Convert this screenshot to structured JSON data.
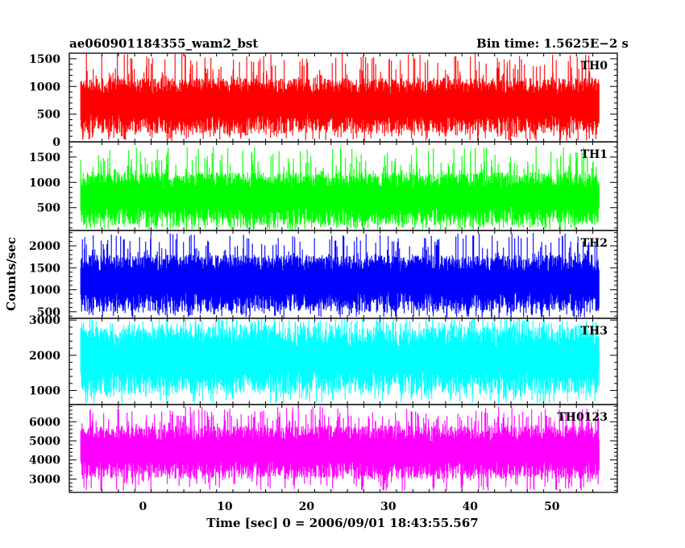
{
  "chart_data": {
    "type": "line",
    "title_left": "ae060901184355_wam2_bst",
    "title_right": "Bin time: 1.5625E−2 s",
    "xlabel": "Time [sec] 0 = 2006/09/01 18:43:55.567",
    "ylabel": "Counts/sec",
    "xlim": [
      -9,
      58
    ],
    "xticks": [
      0,
      10,
      20,
      30,
      40,
      50
    ],
    "x_data_range": [
      -7.6,
      55.8
    ],
    "grid": false,
    "panels": [
      {
        "name": "TH0",
        "color": "#ff0000",
        "ylim": [
          0,
          1600
        ],
        "yticks": [
          0,
          500,
          1000,
          1500
        ],
        "base_min": 150,
        "base_max": 1150,
        "spike_max": 1600
      },
      {
        "name": "TH1",
        "color": "#00ff00",
        "ylim": [
          50,
          1800
        ],
        "yticks": [
          500,
          1000,
          1500
        ],
        "base_min": 150,
        "base_max": 1200,
        "spike_max": 1700
      },
      {
        "name": "TH2",
        "color": "#0000ff",
        "ylim": [
          350,
          2350
        ],
        "yticks": [
          500,
          1000,
          1500,
          2000
        ],
        "base_min": 500,
        "base_max": 1800,
        "spike_max": 2300
      },
      {
        "name": "TH3",
        "color": "#00ffff",
        "ylim": [
          600,
          3050
        ],
        "yticks": [
          1000,
          2000,
          3000
        ],
        "base_min": 900,
        "base_max": 2800,
        "spike_max": 3050
      },
      {
        "name": "TH0123",
        "color": "#ff00ff",
        "ylim": [
          2300,
          6900
        ],
        "yticks": [
          3000,
          4000,
          5000,
          6000
        ],
        "base_min": 3000,
        "base_max": 5800,
        "spike_max": 6800
      }
    ]
  }
}
